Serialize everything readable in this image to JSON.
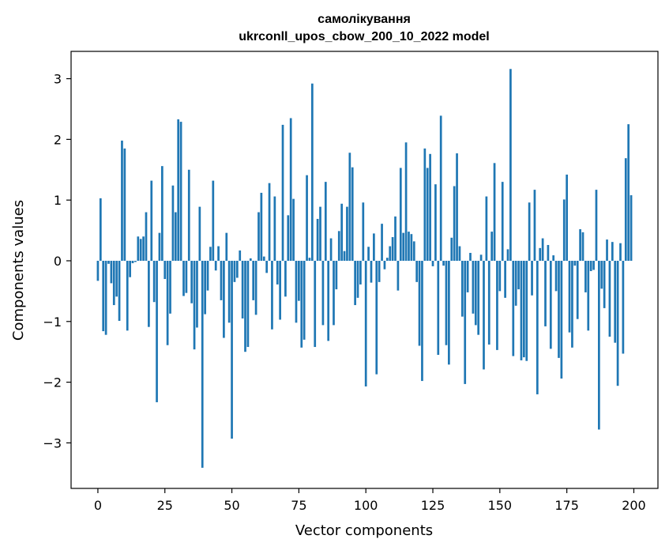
{
  "chart_data": {
    "type": "bar",
    "title": "самолікування",
    "subtitle": "ukrconll_upos_cbow_200_10_2022 model",
    "xlabel": "Vector components",
    "ylabel": "Components values",
    "xlim": [
      -10,
      209
    ],
    "ylim": [
      -3.75,
      3.45
    ],
    "xticks": [
      0,
      25,
      50,
      75,
      100,
      125,
      150,
      175,
      200
    ],
    "xtick_labels": [
      "0",
      "25",
      "50",
      "75",
      "100",
      "125",
      "150",
      "175",
      "200"
    ],
    "yticks": [
      -3,
      -2,
      -1,
      0,
      1,
      2,
      3
    ],
    "ytick_labels": [
      "−3",
      "−2",
      "−1",
      "0",
      "1",
      "2",
      "3"
    ],
    "grid": false,
    "bar_color": "#1f77b4",
    "x": [
      0,
      1,
      2,
      3,
      4,
      5,
      6,
      7,
      8,
      9,
      10,
      11,
      12,
      13,
      14,
      15,
      16,
      17,
      18,
      19,
      20,
      21,
      22,
      23,
      24,
      25,
      26,
      27,
      28,
      29,
      30,
      31,
      32,
      33,
      34,
      35,
      36,
      37,
      38,
      39,
      40,
      41,
      42,
      43,
      44,
      45,
      46,
      47,
      48,
      49,
      50,
      51,
      52,
      53,
      54,
      55,
      56,
      57,
      58,
      59,
      60,
      61,
      62,
      63,
      64,
      65,
      66,
      67,
      68,
      69,
      70,
      71,
      72,
      73,
      74,
      75,
      76,
      77,
      78,
      79,
      80,
      81,
      82,
      83,
      84,
      85,
      86,
      87,
      88,
      89,
      90,
      91,
      92,
      93,
      94,
      95,
      96,
      97,
      98,
      99,
      100,
      101,
      102,
      103,
      104,
      105,
      106,
      107,
      108,
      109,
      110,
      111,
      112,
      113,
      114,
      115,
      116,
      117,
      118,
      119,
      120,
      121,
      122,
      123,
      124,
      125,
      126,
      127,
      128,
      129,
      130,
      131,
      132,
      133,
      134,
      135,
      136,
      137,
      138,
      139,
      140,
      141,
      142,
      143,
      144,
      145,
      146,
      147,
      148,
      149,
      150,
      151,
      152,
      153,
      154,
      155,
      156,
      157,
      158,
      159,
      160,
      161,
      162,
      163,
      164,
      165,
      166,
      167,
      168,
      169,
      170,
      171,
      172,
      173,
      174,
      175,
      176,
      177,
      178,
      179,
      180,
      181,
      182,
      183,
      184,
      185,
      186,
      187,
      188,
      189,
      190,
      191,
      192,
      193,
      194,
      195,
      196,
      197,
      198,
      199
    ],
    "values": [
      -0.33,
      1.03,
      -1.16,
      -1.22,
      -0.05,
      -0.37,
      -0.73,
      -0.59,
      -0.99,
      1.98,
      1.85,
      -1.15,
      -0.27,
      -0.04,
      -0.02,
      0.4,
      0.36,
      0.4,
      0.8,
      -1.09,
      1.32,
      -0.68,
      -2.33,
      0.46,
      1.56,
      -0.3,
      -1.39,
      -0.87,
      1.24,
      0.8,
      2.33,
      2.29,
      -0.58,
      -0.53,
      1.5,
      -0.7,
      -1.46,
      -1.1,
      0.89,
      -3.41,
      -0.88,
      -0.49,
      0.23,
      1.32,
      -0.16,
      0.24,
      -0.65,
      -1.27,
      0.46,
      -1.02,
      -2.93,
      -0.35,
      -0.28,
      0.17,
      -0.95,
      -1.5,
      -1.42,
      0.04,
      -0.65,
      -0.89,
      0.8,
      1.12,
      0.07,
      -0.2,
      1.28,
      -1.13,
      1.06,
      -0.39,
      -0.97,
      2.24,
      -0.59,
      0.75,
      2.35,
      1.02,
      -1.02,
      -0.66,
      -1.43,
      -1.3,
      1.41,
      0.05,
      2.92,
      -1.42,
      0.69,
      0.89,
      -1.06,
      1.3,
      -1.32,
      0.37,
      -1.06,
      -0.47,
      0.49,
      0.94,
      0.16,
      0.89,
      1.78,
      1.54,
      -0.73,
      -0.61,
      -0.39,
      0.96,
      -2.07,
      0.23,
      -0.36,
      0.45,
      -1.87,
      -0.35,
      0.61,
      -0.14,
      0.05,
      0.24,
      0.39,
      0.73,
      -0.49,
      1.53,
      0.46,
      1.95,
      0.48,
      0.44,
      0.32,
      -0.35,
      -1.4,
      -1.98,
      1.85,
      1.53,
      1.76,
      -0.09,
      1.26,
      -1.55,
      2.39,
      -0.08,
      -1.39,
      -1.71,
      0.38,
      1.23,
      1.77,
      0.24,
      -0.92,
      -2.03,
      -0.52,
      0.13,
      -0.87,
      -1.06,
      -1.22,
      0.1,
      -1.79,
      1.06,
      -1.38,
      0.48,
      1.61,
      -1.47,
      -0.5,
      1.3,
      -0.61,
      0.19,
      3.16,
      -1.57,
      -0.74,
      -0.47,
      -1.64,
      -1.59,
      -1.65,
      0.96,
      -0.57,
      1.17,
      -2.2,
      0.21,
      0.37,
      -1.08,
      0.26,
      -1.45,
      0.09,
      -0.5,
      -1.6,
      -1.94,
      1.01,
      1.42,
      -1.18,
      -1.43,
      -0.08,
      -0.96,
      0.52,
      0.47,
      -0.52,
      -1.15,
      -0.17,
      -0.15,
      1.17,
      -2.78,
      -0.46,
      -0.78,
      0.35,
      -1.25,
      0.31,
      -1.35,
      -2.06,
      0.29,
      -1.53,
      1.69,
      2.25,
      1.08
    ]
  }
}
